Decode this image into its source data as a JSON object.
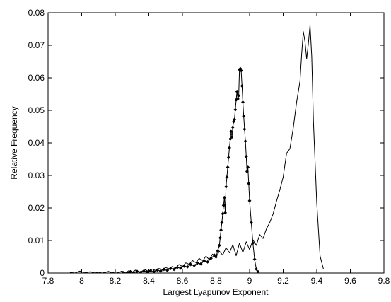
{
  "chart_data": {
    "type": "line",
    "title": "",
    "xlabel": "Largest Lyapunov Exponent",
    "ylabel": "Relative Frequency",
    "xlim": [
      7.8,
      9.8
    ],
    "ylim": [
      0,
      0.08
    ],
    "grid": false,
    "x_ticks": [
      "7.8",
      "8",
      "8.2",
      "8.4",
      "8.6",
      "8.8",
      "9",
      "9.2",
      "9.4",
      "9.6",
      "9.8"
    ],
    "y_ticks": [
      "0",
      "0.01",
      "0.02",
      "0.03",
      "0.04",
      "0.05",
      "0.06",
      "0.07",
      "0.08"
    ],
    "series": [
      {
        "style": "solid-line",
        "color": "#000000",
        "x": [
          7.93,
          7.96,
          7.99,
          8.0,
          8.02,
          8.05,
          8.08,
          8.1,
          8.12,
          8.14,
          8.16,
          8.18,
          8.2,
          8.22,
          8.24,
          8.26,
          8.28,
          8.3,
          8.32,
          8.34,
          8.36,
          8.38,
          8.4,
          8.42,
          8.44,
          8.46,
          8.48,
          8.5,
          8.52,
          8.54,
          8.56,
          8.58,
          8.6,
          8.62,
          8.64,
          8.66,
          8.68,
          8.7,
          8.72,
          8.74,
          8.76,
          8.78,
          8.8,
          8.82,
          8.84,
          8.86,
          8.88,
          8.9,
          8.92,
          8.94,
          8.96,
          8.98,
          9.0,
          9.02,
          9.04,
          9.06,
          9.08,
          9.1,
          9.12,
          9.14,
          9.16,
          9.18,
          9.2,
          9.22,
          9.24,
          9.26,
          9.28,
          9.3,
          9.31,
          9.32,
          9.33,
          9.34,
          9.35,
          9.36,
          9.37,
          9.38,
          9.4,
          9.42,
          9.44
        ],
        "y": [
          0.0002,
          0.0,
          0.0006,
          0.0,
          0.0001,
          0.0004,
          0.0,
          0.0003,
          0.0,
          0.0002,
          0.0005,
          0.0,
          0.0004,
          0.0001,
          0.0006,
          0.0,
          0.0007,
          0.0002,
          0.0009,
          0.0003,
          0.0006,
          0.001,
          0.0004,
          0.0012,
          0.0008,
          0.0014,
          0.001,
          0.0017,
          0.0013,
          0.002,
          0.0016,
          0.0026,
          0.002,
          0.0031,
          0.0027,
          0.0038,
          0.0032,
          0.0045,
          0.0036,
          0.0052,
          0.0041,
          0.0058,
          0.0048,
          0.0067,
          0.0055,
          0.0078,
          0.0062,
          0.0087,
          0.0053,
          0.0092,
          0.0063,
          0.0096,
          0.0072,
          0.0102,
          0.0085,
          0.0118,
          0.0106,
          0.0135,
          0.0155,
          0.0182,
          0.022,
          0.0255,
          0.0295,
          0.0368,
          0.0382,
          0.0445,
          0.0525,
          0.059,
          0.0672,
          0.0742,
          0.071,
          0.0658,
          0.0705,
          0.0762,
          0.0665,
          0.0465,
          0.0215,
          0.0052,
          0.0012
        ]
      },
      {
        "style": "line-with-diamond-markers",
        "color": "#000000",
        "x": [
          8.25,
          8.27,
          8.29,
          8.31,
          8.33,
          8.35,
          8.37,
          8.39,
          8.41,
          8.43,
          8.45,
          8.47,
          8.49,
          8.51,
          8.53,
          8.55,
          8.57,
          8.59,
          8.61,
          8.63,
          8.65,
          8.67,
          8.69,
          8.71,
          8.73,
          8.75,
          8.77,
          8.79,
          8.8,
          8.81,
          8.82,
          8.825,
          8.83,
          8.835,
          8.84,
          8.845,
          8.85,
          8.855,
          8.86,
          8.865,
          8.87,
          8.875,
          8.88,
          8.885,
          8.89,
          8.895,
          8.9,
          8.905,
          8.91,
          8.915,
          8.92,
          8.925,
          8.93,
          8.935,
          8.94,
          8.945,
          8.95,
          8.955,
          8.96,
          8.965,
          8.97,
          8.975,
          8.98,
          8.985,
          8.99,
          8.995,
          9.0,
          9.01,
          9.02,
          9.03,
          9.04,
          9.05
        ],
        "y": [
          0.0001,
          0.0,
          0.0004,
          0.0002,
          0.0005,
          0.0001,
          0.0006,
          0.0003,
          0.0007,
          0.0004,
          0.0009,
          0.0006,
          0.0011,
          0.0008,
          0.0014,
          0.0011,
          0.0017,
          0.0015,
          0.0021,
          0.0019,
          0.0026,
          0.0023,
          0.0031,
          0.0028,
          0.0037,
          0.0034,
          0.0045,
          0.0055,
          0.0049,
          0.0068,
          0.0085,
          0.0108,
          0.0132,
          0.0155,
          0.0182,
          0.0208,
          0.0232,
          0.0185,
          0.0265,
          0.0295,
          0.0325,
          0.0355,
          0.0385,
          0.0412,
          0.0435,
          0.0418,
          0.0448,
          0.0465,
          0.0472,
          0.0502,
          0.0532,
          0.0558,
          0.0535,
          0.0545,
          0.0625,
          0.0628,
          0.0622,
          0.0575,
          0.0525,
          0.0482,
          0.0442,
          0.0405,
          0.0358,
          0.0312,
          0.0325,
          0.0275,
          0.0222,
          0.0155,
          0.0092,
          0.0042,
          0.0012,
          0.0004
        ]
      }
    ]
  }
}
